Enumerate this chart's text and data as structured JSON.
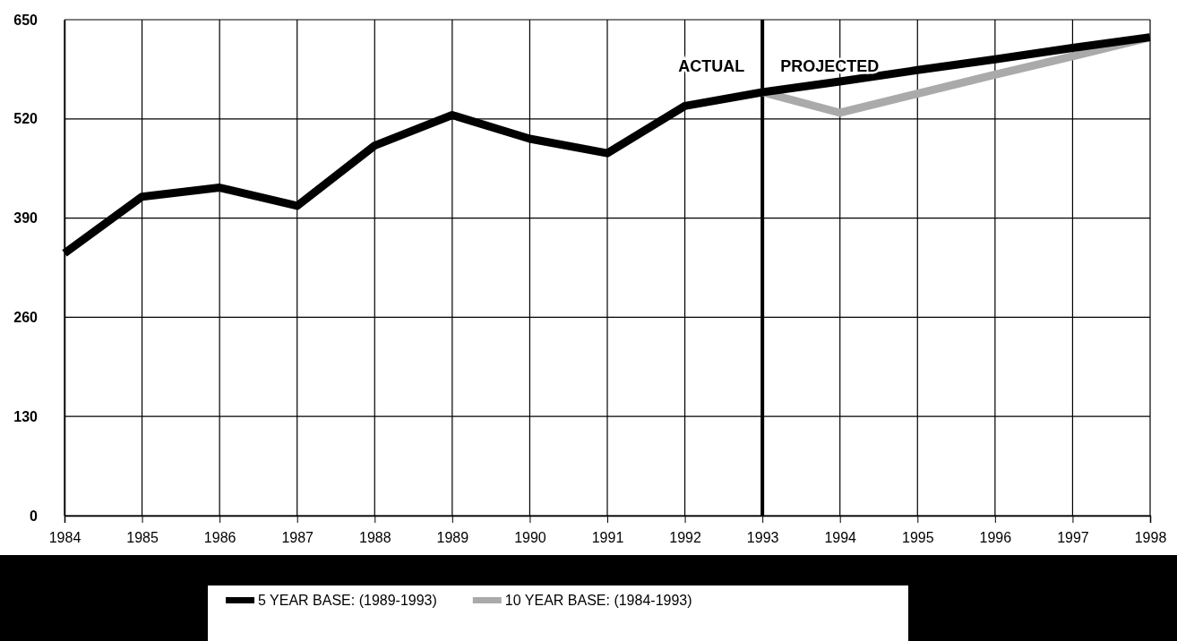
{
  "chart_data": {
    "type": "line",
    "x": [
      1984,
      1985,
      1986,
      1987,
      1988,
      1989,
      1990,
      1991,
      1992,
      1993,
      1994,
      1995,
      1996,
      1997,
      1998
    ],
    "series": [
      {
        "name": "5 YEAR BASE: (1989-1993)",
        "color": "#000000",
        "values": [
          344,
          418,
          430,
          406,
          485,
          525,
          494,
          475,
          537,
          555,
          569,
          584,
          598,
          613,
          627
        ]
      },
      {
        "name": "10 YEAR BASE: (1984-1993)",
        "color": "#aaaaaa",
        "x": [
          1993,
          1994,
          1995,
          1996,
          1997,
          1998
        ],
        "values": [
          555,
          528,
          553,
          578,
          602,
          627
        ]
      }
    ],
    "xlim": [
      1984,
      1998
    ],
    "xticks": [
      1984,
      1985,
      1986,
      1987,
      1988,
      1989,
      1990,
      1991,
      1992,
      1993,
      1994,
      1995,
      1996,
      1997,
      1998
    ],
    "ylim": [
      0,
      650
    ],
    "yticks": [
      0,
      130,
      260,
      390,
      520,
      650
    ],
    "grid": true,
    "legend": "bottom",
    "marker": "none",
    "line_style": "solid",
    "ref_lines": [
      {
        "axis": "x",
        "value": 1993,
        "color": "#000000"
      }
    ],
    "annotations": [
      "ACTUAL",
      "PROJECTED"
    ]
  }
}
